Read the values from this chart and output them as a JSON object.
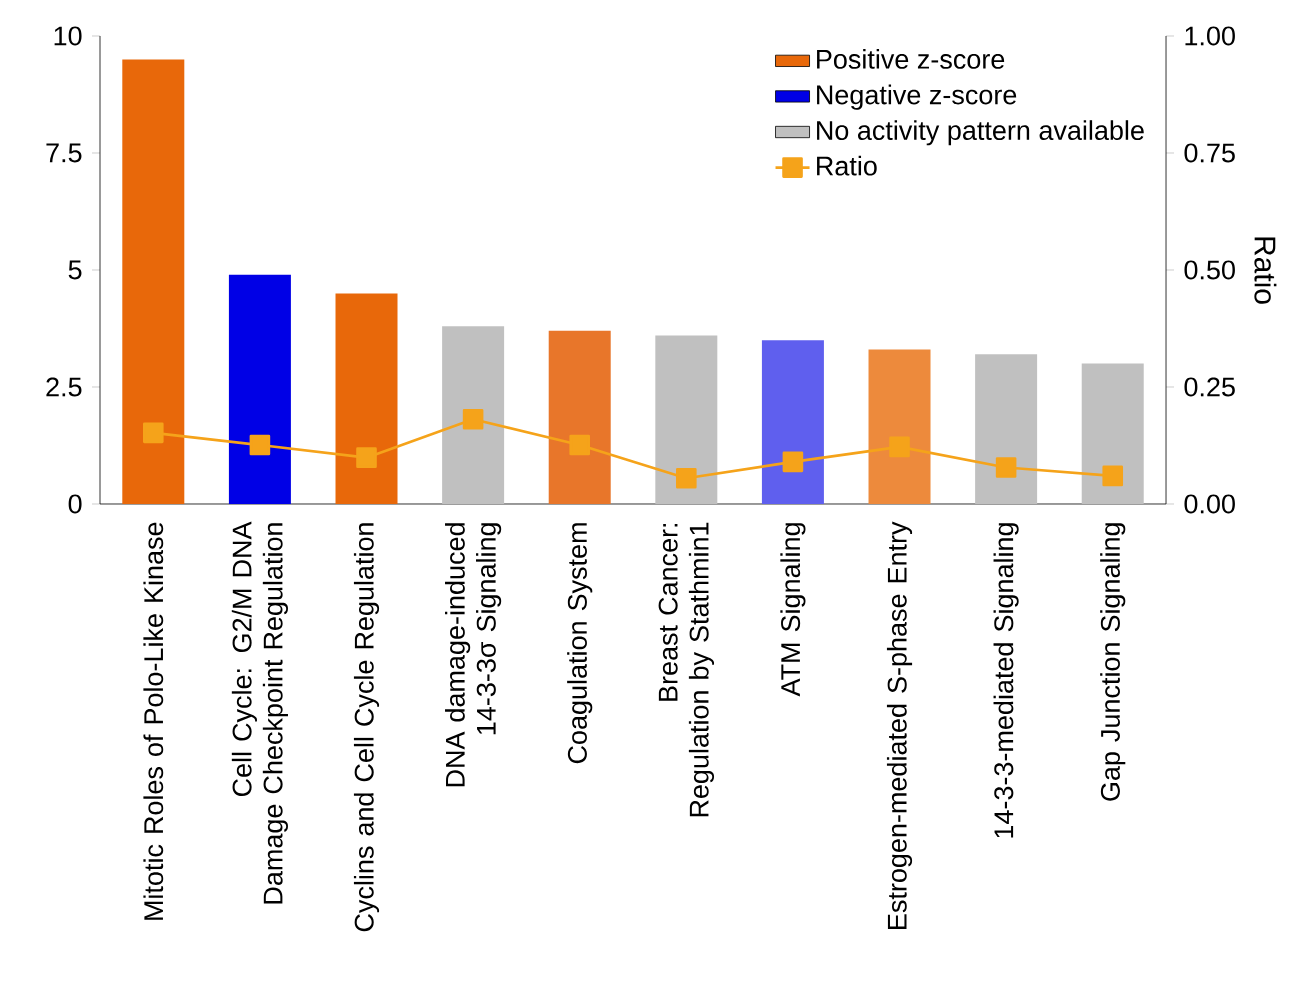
{
  "chart_data": {
    "type": "bar",
    "categories": [
      "Mitotic Roles of Polo-Like Kinase",
      "Cell Cycle: G2/M DNA Damage Checkpoint Regulation",
      "Cyclins and Cell Cycle Regulation",
      "DNA damage-induced 14-3-3σ Signaling",
      "Coagulation System",
      "Breast Cancer: Regulation by Stathmin1",
      "ATM Signaling",
      "Estrogen-mediated S-phase Entry",
      "14-3-3-mediated Signaling",
      "Gap Junction Signaling"
    ],
    "series": [
      {
        "name": "Positive z-score",
        "color": "#e8680a",
        "colors": [
          "#e8680a",
          null,
          "#e8680a",
          null,
          "#e8762a",
          null,
          null,
          "#ed8a3c",
          null,
          null
        ],
        "values": [
          9.5,
          null,
          4.5,
          null,
          3.7,
          null,
          null,
          3.3,
          null,
          null
        ]
      },
      {
        "name": "Negative z-score",
        "color": "#0000e6",
        "colors": [
          null,
          "#0000e6",
          null,
          null,
          null,
          null,
          "#5f5fee",
          null,
          null,
          null
        ],
        "values": [
          null,
          4.9,
          null,
          null,
          null,
          null,
          3.5,
          null,
          null,
          null
        ]
      },
      {
        "name": "No activity pattern available",
        "color": "#c0c0c0",
        "colors": [
          null,
          null,
          null,
          "#c0c0c0",
          null,
          "#c0c0c0",
          null,
          null,
          "#c0c0c0",
          "#c0c0c0"
        ],
        "values": [
          null,
          null,
          null,
          3.8,
          null,
          3.6,
          null,
          null,
          3.2,
          3.0
        ]
      },
      {
        "name": "Ratio",
        "type": "line",
        "axis": "y2",
        "color": "#f5a31a",
        "marker": "square",
        "line_style": "solid",
        "values": [
          0.152,
          0.126,
          0.099,
          0.181,
          0.126,
          0.055,
          0.09,
          0.122,
          0.078,
          0.06
        ]
      }
    ],
    "ylim": [
      0,
      10
    ],
    "yticks": [
      0,
      2.5,
      5,
      7.5,
      10
    ],
    "y2lim": [
      0,
      1
    ],
    "y2ticks": [
      {
        "value": 0,
        "label": "0.00"
      },
      {
        "value": 0.25,
        "label": "0.25"
      },
      {
        "value": 0.5,
        "label": "0.50"
      },
      {
        "value": 0.75,
        "label": "0.75"
      },
      {
        "value": 1,
        "label": "1.00"
      }
    ],
    "y2label": "Ratio",
    "legend": "top right",
    "grid": false
  }
}
